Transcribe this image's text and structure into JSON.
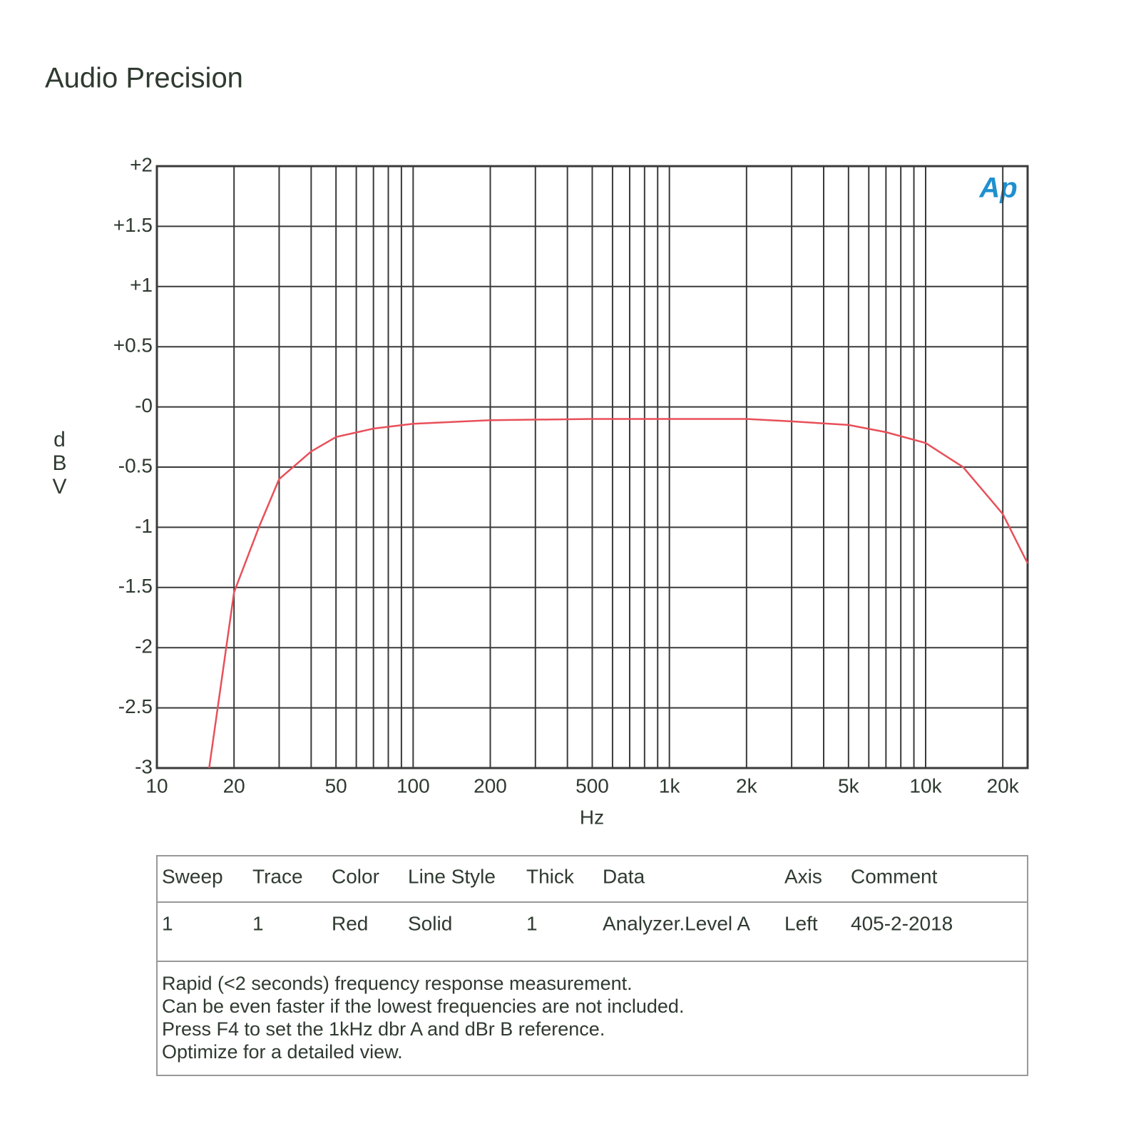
{
  "title": "Audio Precision",
  "chart_data": {
    "type": "line",
    "x_label": "Hz",
    "y_label": "dBV",
    "logo": "Ap",
    "xscale": "log",
    "xlim": [
      10,
      25000
    ],
    "xticks": [
      10,
      20,
      50,
      100,
      200,
      500,
      {
        "value": 1000,
        "label": "1k"
      },
      {
        "value": 2000,
        "label": "2k"
      },
      {
        "value": 5000,
        "label": "5k"
      },
      {
        "value": 10000,
        "label": "10k"
      },
      {
        "value": 20000,
        "label": "20k"
      }
    ],
    "xminor": [
      30,
      40,
      60,
      70,
      80,
      90,
      300,
      400,
      600,
      700,
      800,
      900,
      3000,
      4000,
      6000,
      7000,
      8000,
      9000
    ],
    "ylim": [
      -3,
      2
    ],
    "yticks": [
      {
        "value": 2,
        "label": "+2"
      },
      {
        "value": 1.5,
        "label": "+1.5"
      },
      {
        "value": 1,
        "label": "+1"
      },
      {
        "value": 0.5,
        "label": "+0.5"
      },
      {
        "value": 0,
        "label": "-0"
      },
      -0.5,
      -1,
      -1.5,
      -2,
      -2.5,
      -3
    ],
    "grid": true,
    "x": [
      16,
      20,
      25,
      30,
      40,
      50,
      70,
      100,
      200,
      500,
      1000,
      2000,
      3000,
      5000,
      7000,
      10000,
      14000,
      20000,
      25000
    ],
    "series": [
      {
        "color": "#e8505a",
        "values": [
          -3,
          -1.54,
          -1.0,
          -0.6,
          -0.37,
          -0.25,
          -0.18,
          -0.14,
          -0.11,
          -0.1,
          -0.1,
          -0.1,
          -0.12,
          -0.15,
          -0.21,
          -0.3,
          -0.5,
          -0.89,
          -1.3
        ]
      }
    ]
  },
  "legend_table": {
    "headers": [
      "Sweep",
      "Trace",
      "Color",
      "Line Style",
      "Thick",
      "Data",
      "Axis",
      "Comment"
    ],
    "rows": [
      [
        "1",
        "1",
        "Red",
        "Solid",
        "1",
        "Analyzer.Level A",
        "Left",
        "405-2-2018"
      ]
    ],
    "notes": [
      "Rapid (<2 seconds) frequency response measurement.",
      "Can be even faster if the lowest frequencies are not included.",
      "Press F4 to set the 1kHz dbr A and dBr B reference.",
      "Optimize for a detailed view."
    ]
  }
}
